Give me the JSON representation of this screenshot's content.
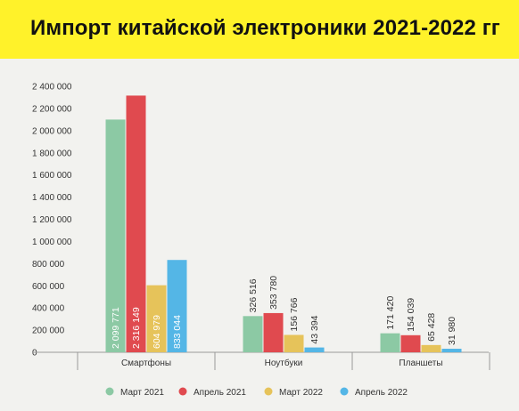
{
  "title": "Импорт китайской электроники 2021-2022 гг",
  "chart_data": {
    "type": "bar",
    "title": "Импорт китайской электроники 2021-2022 гг",
    "xlabel": "",
    "ylabel": "",
    "ylim": [
      0,
      2400000
    ],
    "yticks": [
      0,
      200000,
      400000,
      600000,
      800000,
      1000000,
      1200000,
      1400000,
      1600000,
      1800000,
      2000000,
      2200000,
      2400000
    ],
    "ytick_labels": [
      "0",
      "200 000",
      "400 000",
      "600 000",
      "800 000",
      "1 000 000",
      "1 200 000",
      "1 400 000",
      "1 600 000",
      "1 800 000",
      "2 000 000",
      "2 200 000",
      "2 400 000"
    ],
    "categories": [
      "Смартфоны",
      "Ноутбуки",
      "Планшеты"
    ],
    "series": [
      {
        "name": "Март 2021",
        "color": "#8cc9a4",
        "values": [
          2099771,
          326516,
          171420
        ],
        "labels": [
          "2 099 771",
          "326 516",
          "171 420"
        ]
      },
      {
        "name": "Апрель 2021",
        "color": "#e04a4f",
        "values": [
          2316149,
          353780,
          154039
        ],
        "labels": [
          "2 316 149",
          "353 780",
          "154 039"
        ]
      },
      {
        "name": "Март 2022",
        "color": "#e6c35a",
        "values": [
          604979,
          156766,
          65428
        ],
        "labels": [
          "604 979",
          "156 766",
          "65 428"
        ]
      },
      {
        "name": "Апрель 2022",
        "color": "#54b6e6",
        "values": [
          833044,
          43394,
          31980
        ],
        "labels": [
          "833 044",
          "43 394",
          "31 980"
        ]
      }
    ],
    "grid": false,
    "legend": "bottom-center"
  }
}
